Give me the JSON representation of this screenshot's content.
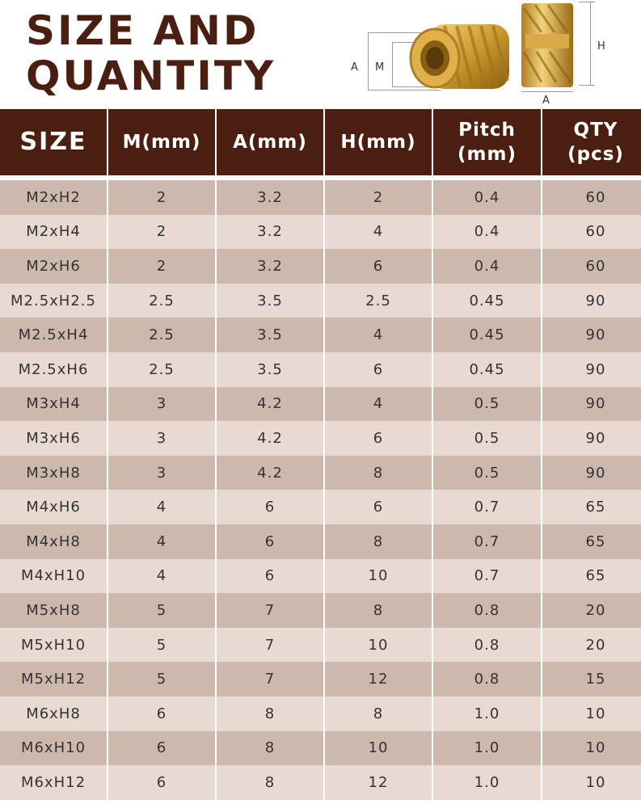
{
  "title": {
    "line1": "SIZE AND",
    "line2": "QUANTITY"
  },
  "diagram": {
    "label_a_left": "A",
    "label_m": "M",
    "label_h": "H",
    "label_a_bottom": "A",
    "brass_color": "#c99a2e"
  },
  "table": {
    "headers": [
      "SIZE",
      "M(mm)",
      "A(mm)",
      "H(mm)",
      "Pitch\n(mm)",
      "QTY\n(pcs)"
    ],
    "rows": [
      [
        "M2xH2",
        "2",
        "3.2",
        "2",
        "0.4",
        "60"
      ],
      [
        "M2xH4",
        "2",
        "3.2",
        "4",
        "0.4",
        "60"
      ],
      [
        "M2xH6",
        "2",
        "3.2",
        "6",
        "0.4",
        "60"
      ],
      [
        "M2.5xH2.5",
        "2.5",
        "3.5",
        "2.5",
        "0.45",
        "90"
      ],
      [
        "M2.5xH4",
        "2.5",
        "3.5",
        "4",
        "0.45",
        "90"
      ],
      [
        "M2.5xH6",
        "2.5",
        "3.5",
        "6",
        "0.45",
        "90"
      ],
      [
        "M3xH4",
        "3",
        "4.2",
        "4",
        "0.5",
        "90"
      ],
      [
        "M3xH6",
        "3",
        "4.2",
        "6",
        "0.5",
        "90"
      ],
      [
        "M3xH8",
        "3",
        "4.2",
        "8",
        "0.5",
        "90"
      ],
      [
        "M4xH6",
        "4",
        "6",
        "6",
        "0.7",
        "65"
      ],
      [
        "M4xH8",
        "4",
        "6",
        "8",
        "0.7",
        "65"
      ],
      [
        "M4xH10",
        "4",
        "6",
        "10",
        "0.7",
        "65"
      ],
      [
        "M5xH8",
        "5",
        "7",
        "8",
        "0.8",
        "20"
      ],
      [
        "M5xH10",
        "5",
        "7",
        "10",
        "0.8",
        "20"
      ],
      [
        "M5xH12",
        "5",
        "7",
        "12",
        "0.8",
        "15"
      ],
      [
        "M6xH8",
        "6",
        "8",
        "8",
        "1.0",
        "10"
      ],
      [
        "M6xH10",
        "6",
        "8",
        "10",
        "1.0",
        "10"
      ],
      [
        "M6xH12",
        "6",
        "8",
        "12",
        "1.0",
        "10"
      ]
    ]
  },
  "colors": {
    "header_bg": "#4a1f12",
    "row_dark": "#cdb8ad",
    "row_light": "#e8dad3",
    "title": "#4a1f12"
  }
}
